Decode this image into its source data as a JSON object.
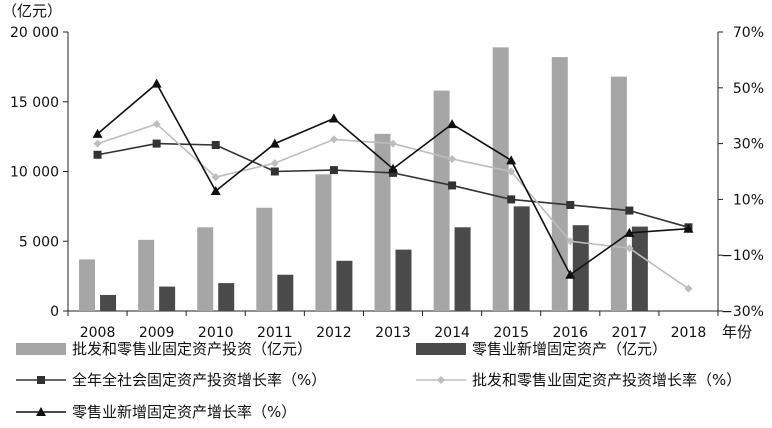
{
  "chart_data": {
    "type": "bar+line",
    "categories": [
      "2008",
      "2009",
      "2010",
      "2011",
      "2012",
      "2013",
      "2014",
      "2015",
      "2016",
      "2017",
      "2018"
    ],
    "x_unit_label": "年份",
    "left_axis": {
      "unit_label": "（亿元）",
      "ylim": [
        0,
        20000
      ],
      "ticks": [
        "0",
        "5 000",
        "10 000",
        "15 000",
        "20 000"
      ],
      "tick_values": [
        0,
        5000,
        10000,
        15000,
        20000
      ]
    },
    "right_axis": {
      "ylim": [
        -30,
        70
      ],
      "ticks": [
        "−30%",
        "−10%",
        "10%",
        "30%",
        "50%",
        "70%"
      ],
      "tick_values": [
        -30,
        -10,
        10,
        30,
        50,
        70
      ]
    },
    "bar_series": [
      {
        "name": "批发和零售业固定资产投资（亿元）",
        "color": "#a6a6a6",
        "values": [
          3700,
          5100,
          6000,
          7400,
          9800,
          12700,
          15800,
          18900,
          18200,
          16800,
          null
        ]
      },
      {
        "name": "零售业新增固定资产（亿元）",
        "color": "#4a4a4a",
        "values": [
          1150,
          1750,
          2000,
          2600,
          3600,
          4400,
          6000,
          7500,
          6150,
          6050,
          null
        ]
      }
    ],
    "line_series": [
      {
        "name": "全年全社会固定资产投资增长率（%）",
        "color": "#333333",
        "marker": "square",
        "values": [
          26,
          30,
          29.5,
          20,
          20.5,
          19.5,
          15,
          10,
          8,
          6,
          0
        ]
      },
      {
        "name": "批发和零售业固定资产投资增长率（%）",
        "color": "#bdbdbd",
        "marker": "diamond",
        "values": [
          30,
          37,
          18,
          23,
          31.5,
          30,
          24.5,
          20,
          -5,
          -7.5,
          -22
        ]
      },
      {
        "name": "零售业新增固定资产增长率（%）",
        "color": "#111111",
        "marker": "triangle",
        "values": [
          33.5,
          51.5,
          13,
          30,
          39,
          21,
          37,
          24,
          -17,
          -2,
          -0.5
        ]
      }
    ],
    "legend_position": "bottom",
    "grid": false
  }
}
